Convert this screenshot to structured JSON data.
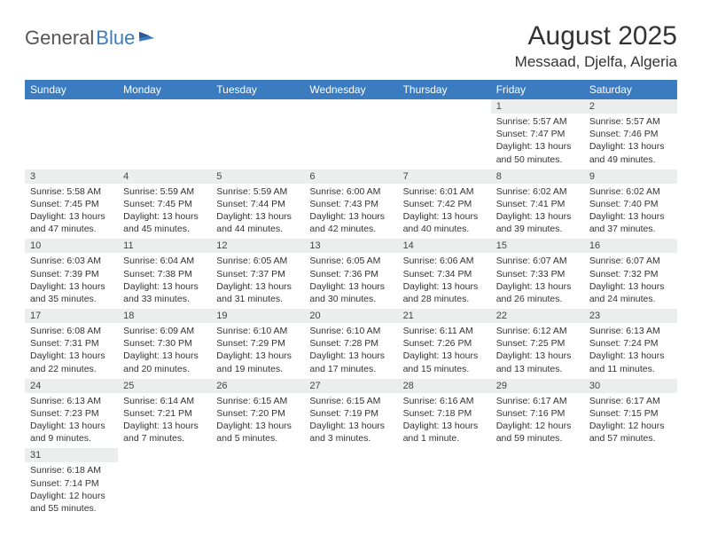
{
  "brand": {
    "part1": "General",
    "part2": "Blue"
  },
  "title": "August 2025",
  "location": "Messaad, Djelfa, Algeria",
  "colors": {
    "header_bg": "#3b7bbf",
    "header_fg": "#ffffff",
    "daynum_bg": "#eceded",
    "border": "#3b7bbf",
    "text": "#333333"
  },
  "weekdays": [
    "Sunday",
    "Monday",
    "Tuesday",
    "Wednesday",
    "Thursday",
    "Friday",
    "Saturday"
  ],
  "weeks": [
    [
      null,
      null,
      null,
      null,
      null,
      {
        "n": "1",
        "sr": "5:57 AM",
        "ss": "7:47 PM",
        "dl": "13 hours and 50 minutes."
      },
      {
        "n": "2",
        "sr": "5:57 AM",
        "ss": "7:46 PM",
        "dl": "13 hours and 49 minutes."
      }
    ],
    [
      {
        "n": "3",
        "sr": "5:58 AM",
        "ss": "7:45 PM",
        "dl": "13 hours and 47 minutes."
      },
      {
        "n": "4",
        "sr": "5:59 AM",
        "ss": "7:45 PM",
        "dl": "13 hours and 45 minutes."
      },
      {
        "n": "5",
        "sr": "5:59 AM",
        "ss": "7:44 PM",
        "dl": "13 hours and 44 minutes."
      },
      {
        "n": "6",
        "sr": "6:00 AM",
        "ss": "7:43 PM",
        "dl": "13 hours and 42 minutes."
      },
      {
        "n": "7",
        "sr": "6:01 AM",
        "ss": "7:42 PM",
        "dl": "13 hours and 40 minutes."
      },
      {
        "n": "8",
        "sr": "6:02 AM",
        "ss": "7:41 PM",
        "dl": "13 hours and 39 minutes."
      },
      {
        "n": "9",
        "sr": "6:02 AM",
        "ss": "7:40 PM",
        "dl": "13 hours and 37 minutes."
      }
    ],
    [
      {
        "n": "10",
        "sr": "6:03 AM",
        "ss": "7:39 PM",
        "dl": "13 hours and 35 minutes."
      },
      {
        "n": "11",
        "sr": "6:04 AM",
        "ss": "7:38 PM",
        "dl": "13 hours and 33 minutes."
      },
      {
        "n": "12",
        "sr": "6:05 AM",
        "ss": "7:37 PM",
        "dl": "13 hours and 31 minutes."
      },
      {
        "n": "13",
        "sr": "6:05 AM",
        "ss": "7:36 PM",
        "dl": "13 hours and 30 minutes."
      },
      {
        "n": "14",
        "sr": "6:06 AM",
        "ss": "7:34 PM",
        "dl": "13 hours and 28 minutes."
      },
      {
        "n": "15",
        "sr": "6:07 AM",
        "ss": "7:33 PM",
        "dl": "13 hours and 26 minutes."
      },
      {
        "n": "16",
        "sr": "6:07 AM",
        "ss": "7:32 PM",
        "dl": "13 hours and 24 minutes."
      }
    ],
    [
      {
        "n": "17",
        "sr": "6:08 AM",
        "ss": "7:31 PM",
        "dl": "13 hours and 22 minutes."
      },
      {
        "n": "18",
        "sr": "6:09 AM",
        "ss": "7:30 PM",
        "dl": "13 hours and 20 minutes."
      },
      {
        "n": "19",
        "sr": "6:10 AM",
        "ss": "7:29 PM",
        "dl": "13 hours and 19 minutes."
      },
      {
        "n": "20",
        "sr": "6:10 AM",
        "ss": "7:28 PM",
        "dl": "13 hours and 17 minutes."
      },
      {
        "n": "21",
        "sr": "6:11 AM",
        "ss": "7:26 PM",
        "dl": "13 hours and 15 minutes."
      },
      {
        "n": "22",
        "sr": "6:12 AM",
        "ss": "7:25 PM",
        "dl": "13 hours and 13 minutes."
      },
      {
        "n": "23",
        "sr": "6:13 AM",
        "ss": "7:24 PM",
        "dl": "13 hours and 11 minutes."
      }
    ],
    [
      {
        "n": "24",
        "sr": "6:13 AM",
        "ss": "7:23 PM",
        "dl": "13 hours and 9 minutes."
      },
      {
        "n": "25",
        "sr": "6:14 AM",
        "ss": "7:21 PM",
        "dl": "13 hours and 7 minutes."
      },
      {
        "n": "26",
        "sr": "6:15 AM",
        "ss": "7:20 PM",
        "dl": "13 hours and 5 minutes."
      },
      {
        "n": "27",
        "sr": "6:15 AM",
        "ss": "7:19 PM",
        "dl": "13 hours and 3 minutes."
      },
      {
        "n": "28",
        "sr": "6:16 AM",
        "ss": "7:18 PM",
        "dl": "13 hours and 1 minute."
      },
      {
        "n": "29",
        "sr": "6:17 AM",
        "ss": "7:16 PM",
        "dl": "12 hours and 59 minutes."
      },
      {
        "n": "30",
        "sr": "6:17 AM",
        "ss": "7:15 PM",
        "dl": "12 hours and 57 minutes."
      }
    ],
    [
      {
        "n": "31",
        "sr": "6:18 AM",
        "ss": "7:14 PM",
        "dl": "12 hours and 55 minutes."
      },
      null,
      null,
      null,
      null,
      null,
      null
    ]
  ],
  "labels": {
    "sunrise": "Sunrise:",
    "sunset": "Sunset:",
    "daylight": "Daylight:"
  }
}
